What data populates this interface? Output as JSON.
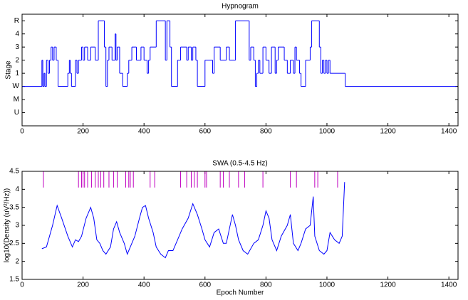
{
  "chart_data": [
    {
      "type": "step",
      "title": "Hypnogram",
      "ylabel": "Stage",
      "color": "#0000ff",
      "x": [
        0,
        65,
        68,
        72,
        75,
        80,
        85,
        90,
        95,
        100,
        105,
        112,
        118,
        150,
        155,
        158,
        162,
        175,
        180,
        185,
        195,
        200,
        205,
        215,
        225,
        240,
        250,
        270,
        275,
        280,
        285,
        295,
        305,
        308,
        312,
        320,
        330,
        345,
        350,
        360,
        375,
        390,
        400,
        410,
        415,
        420,
        440,
        470,
        475,
        485,
        490,
        510,
        520,
        540,
        545,
        555,
        560,
        570,
        575,
        600,
        625,
        630,
        650,
        670,
        680,
        700,
        745,
        750,
        760,
        765,
        770,
        775,
        780,
        790,
        800,
        810,
        818,
        830,
        835,
        840,
        860,
        870,
        880,
        890,
        895,
        900,
        910,
        915,
        930,
        945,
        950,
        975,
        980,
        985,
        990,
        995,
        1000,
        1005,
        1010,
        1060,
        1425
      ],
      "values": [
        0,
        2,
        0,
        1,
        0,
        2,
        1,
        2,
        3,
        2,
        3,
        2,
        0,
        1,
        2,
        1,
        0,
        2,
        1,
        2,
        3,
        2,
        3,
        2,
        3,
        2,
        5,
        3,
        0,
        2,
        3,
        2,
        4,
        2,
        3,
        1,
        0,
        1,
        2,
        3,
        2,
        3,
        2,
        1,
        2,
        3,
        5,
        2,
        5,
        3,
        0,
        2,
        3,
        2,
        3,
        2,
        3,
        2,
        0,
        2,
        1,
        3,
        2,
        3,
        2,
        5,
        2,
        3,
        2,
        0,
        1,
        2,
        1,
        3,
        2,
        1,
        3,
        1,
        2,
        3,
        2,
        1,
        2,
        1,
        3,
        2,
        1,
        0,
        2,
        3,
        5,
        3,
        1,
        2,
        1,
        2,
        1,
        2,
        1,
        0,
        0
      ],
      "xlim": [
        0,
        1430
      ],
      "xticks": [
        0,
        200,
        400,
        600,
        800,
        1000,
        1200,
        1400
      ],
      "ylim": [
        -3,
        5.5
      ],
      "yticks": [
        {
          "value": -2,
          "label": "U"
        },
        {
          "value": -1,
          "label": "M"
        },
        {
          "value": 0,
          "label": "W"
        },
        1,
        2,
        3,
        4,
        {
          "value": 5,
          "label": "R"
        }
      ]
    },
    {
      "type": "line",
      "title": "SWA (0.5-4.5 Hz)",
      "xlabel": "Epoch Number",
      "ylabel": "log10(Density (uV²/Hz))",
      "color": "#0000ff",
      "x": [
        65,
        80,
        90,
        100,
        115,
        130,
        150,
        165,
        175,
        185,
        195,
        210,
        225,
        235,
        245,
        255,
        265,
        275,
        290,
        300,
        310,
        320,
        335,
        345,
        355,
        370,
        385,
        395,
        405,
        415,
        430,
        440,
        455,
        470,
        480,
        495,
        510,
        525,
        545,
        560,
        575,
        590,
        600,
        615,
        630,
        645,
        660,
        670,
        690,
        700,
        710,
        725,
        740,
        760,
        775,
        790,
        800,
        810,
        820,
        835,
        850,
        870,
        880,
        890,
        905,
        915,
        930,
        945,
        955,
        960,
        975,
        990,
        1000,
        1010,
        1025,
        1040,
        1050,
        1058
      ],
      "values": [
        2.35,
        2.4,
        2.7,
        3.0,
        3.55,
        3.2,
        2.7,
        2.4,
        2.6,
        2.55,
        2.7,
        3.2,
        3.5,
        3.2,
        2.6,
        2.5,
        2.3,
        2.2,
        2.4,
        2.9,
        3.1,
        2.8,
        2.5,
        2.2,
        2.4,
        2.7,
        3.2,
        3.5,
        3.55,
        3.2,
        2.8,
        2.4,
        2.2,
        2.1,
        2.3,
        2.3,
        2.6,
        2.9,
        3.2,
        3.6,
        3.3,
        2.9,
        2.6,
        2.4,
        2.8,
        2.9,
        2.5,
        2.5,
        3.3,
        3.0,
        2.6,
        2.3,
        2.2,
        2.5,
        2.6,
        3.0,
        3.4,
        3.2,
        2.6,
        2.3,
        2.7,
        3.0,
        3.3,
        2.5,
        2.3,
        2.5,
        2.9,
        3.0,
        3.8,
        2.7,
        2.3,
        2.2,
        2.3,
        2.8,
        2.6,
        2.5,
        2.7,
        4.2
      ],
      "events": {
        "color": "#c000c0",
        "range": [
          4.05,
          4.5
        ],
        "x": [
          70,
          185,
          195,
          200,
          205,
          215,
          228,
          240,
          250,
          258,
          268,
          285,
          300,
          312,
          340,
          350,
          355,
          365,
          420,
          435,
          520,
          540,
          555,
          565,
          575,
          600,
          605,
          650,
          660,
          680,
          710,
          730,
          790,
          880,
          900,
          960,
          970,
          1035
        ]
      },
      "xlim": [
        0,
        1430
      ],
      "xticks": [
        0,
        200,
        400,
        600,
        800,
        1000,
        1200,
        1400
      ],
      "ylim": [
        1.5,
        4.5
      ],
      "yticks": [
        1.5,
        2,
        2.5,
        3,
        3.5,
        4,
        4.5
      ]
    }
  ]
}
